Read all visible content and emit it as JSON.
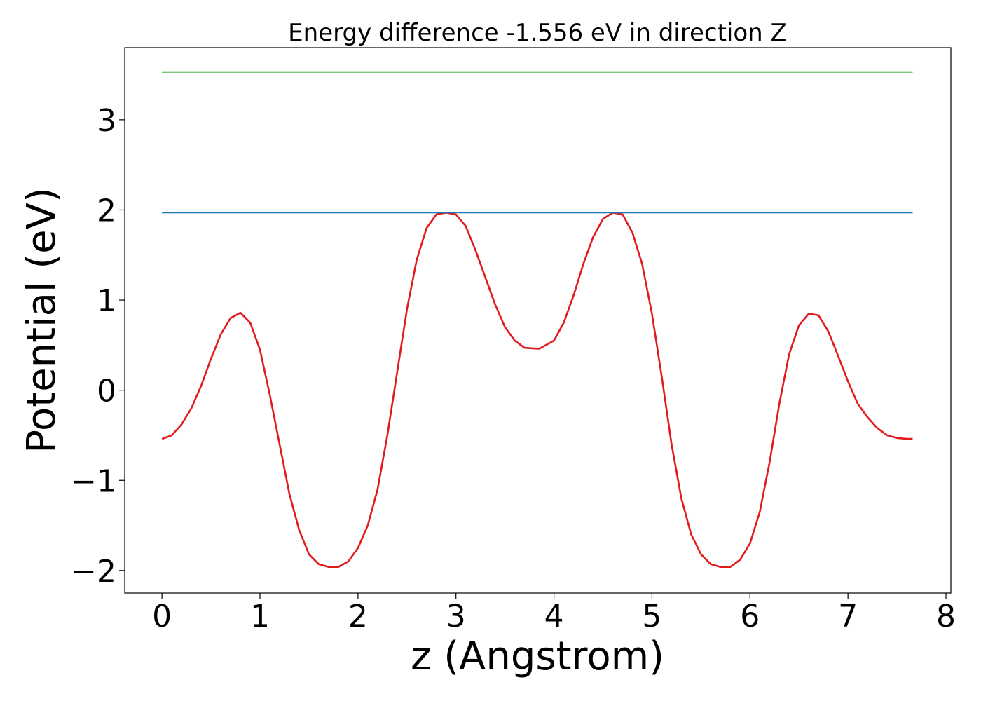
{
  "chart_data": {
    "type": "line",
    "title": "Energy difference -1.556 eV in direction Z",
    "xlabel": "z (Angstrom)",
    "ylabel": "Potential (eV)",
    "xlim": [
      -0.38,
      8.05
    ],
    "ylim": [
      -2.25,
      3.8
    ],
    "xticks": [
      0,
      1,
      2,
      3,
      4,
      5,
      6,
      7,
      8
    ],
    "xtick_labels": [
      "0",
      "1",
      "2",
      "3",
      "4",
      "5",
      "6",
      "7",
      "8"
    ],
    "yticks": [
      -2,
      -1,
      0,
      1,
      2,
      3
    ],
    "ytick_labels": [
      "−2",
      "−1",
      "0",
      "1",
      "2",
      "3"
    ],
    "grid": false,
    "colors": {
      "potential": "#e31a1c",
      "level_blue": "#1f77b4",
      "level_green": "#2ca02c"
    },
    "series": [
      {
        "color": "#e31a1c",
        "x": [
          0,
          0.1,
          0.2,
          0.3,
          0.4,
          0.5,
          0.6,
          0.7,
          0.8,
          0.9,
          1.0,
          1.1,
          1.2,
          1.3,
          1.4,
          1.5,
          1.6,
          1.7,
          1.8,
          1.9,
          2.0,
          2.1,
          2.2,
          2.3,
          2.4,
          2.5,
          2.6,
          2.7,
          2.8,
          2.9,
          3.0,
          3.1,
          3.2,
          3.3,
          3.4,
          3.5,
          3.6,
          3.7,
          3.85,
          4.0,
          4.1,
          4.2,
          4.3,
          4.4,
          4.5,
          4.6,
          4.7,
          4.8,
          4.9,
          5.0,
          5.1,
          5.2,
          5.3,
          5.4,
          5.5,
          5.6,
          5.7,
          5.8,
          5.9,
          6.0,
          6.1,
          6.2,
          6.3,
          6.4,
          6.5,
          6.6,
          6.7,
          6.8,
          6.9,
          7.0,
          7.1,
          7.2,
          7.3,
          7.4,
          7.5,
          7.6,
          7.66
        ],
        "y": [
          -0.54,
          -0.5,
          -0.38,
          -0.2,
          0.05,
          0.35,
          0.62,
          0.8,
          0.86,
          0.75,
          0.45,
          -0.05,
          -0.6,
          -1.15,
          -1.55,
          -1.82,
          -1.93,
          -1.96,
          -1.96,
          -1.9,
          -1.75,
          -1.5,
          -1.1,
          -0.5,
          0.2,
          0.9,
          1.45,
          1.8,
          1.95,
          1.97,
          1.95,
          1.82,
          1.55,
          1.25,
          0.95,
          0.7,
          0.55,
          0.47,
          0.46,
          0.55,
          0.75,
          1.05,
          1.4,
          1.7,
          1.9,
          1.97,
          1.95,
          1.75,
          1.4,
          0.85,
          0.15,
          -0.6,
          -1.2,
          -1.6,
          -1.82,
          -1.93,
          -1.96,
          -1.96,
          -1.88,
          -1.7,
          -1.35,
          -0.8,
          -0.15,
          0.4,
          0.72,
          0.85,
          0.83,
          0.65,
          0.38,
          0.1,
          -0.15,
          -0.3,
          -0.42,
          -0.5,
          -0.53,
          -0.54,
          -0.54
        ]
      },
      {
        "color": "#1f77b4",
        "x": [
          0,
          7.66
        ],
        "y": [
          1.97,
          1.97
        ]
      },
      {
        "color": "#2ca02c",
        "x": [
          0,
          7.66
        ],
        "y": [
          3.53,
          3.53
        ]
      }
    ]
  }
}
